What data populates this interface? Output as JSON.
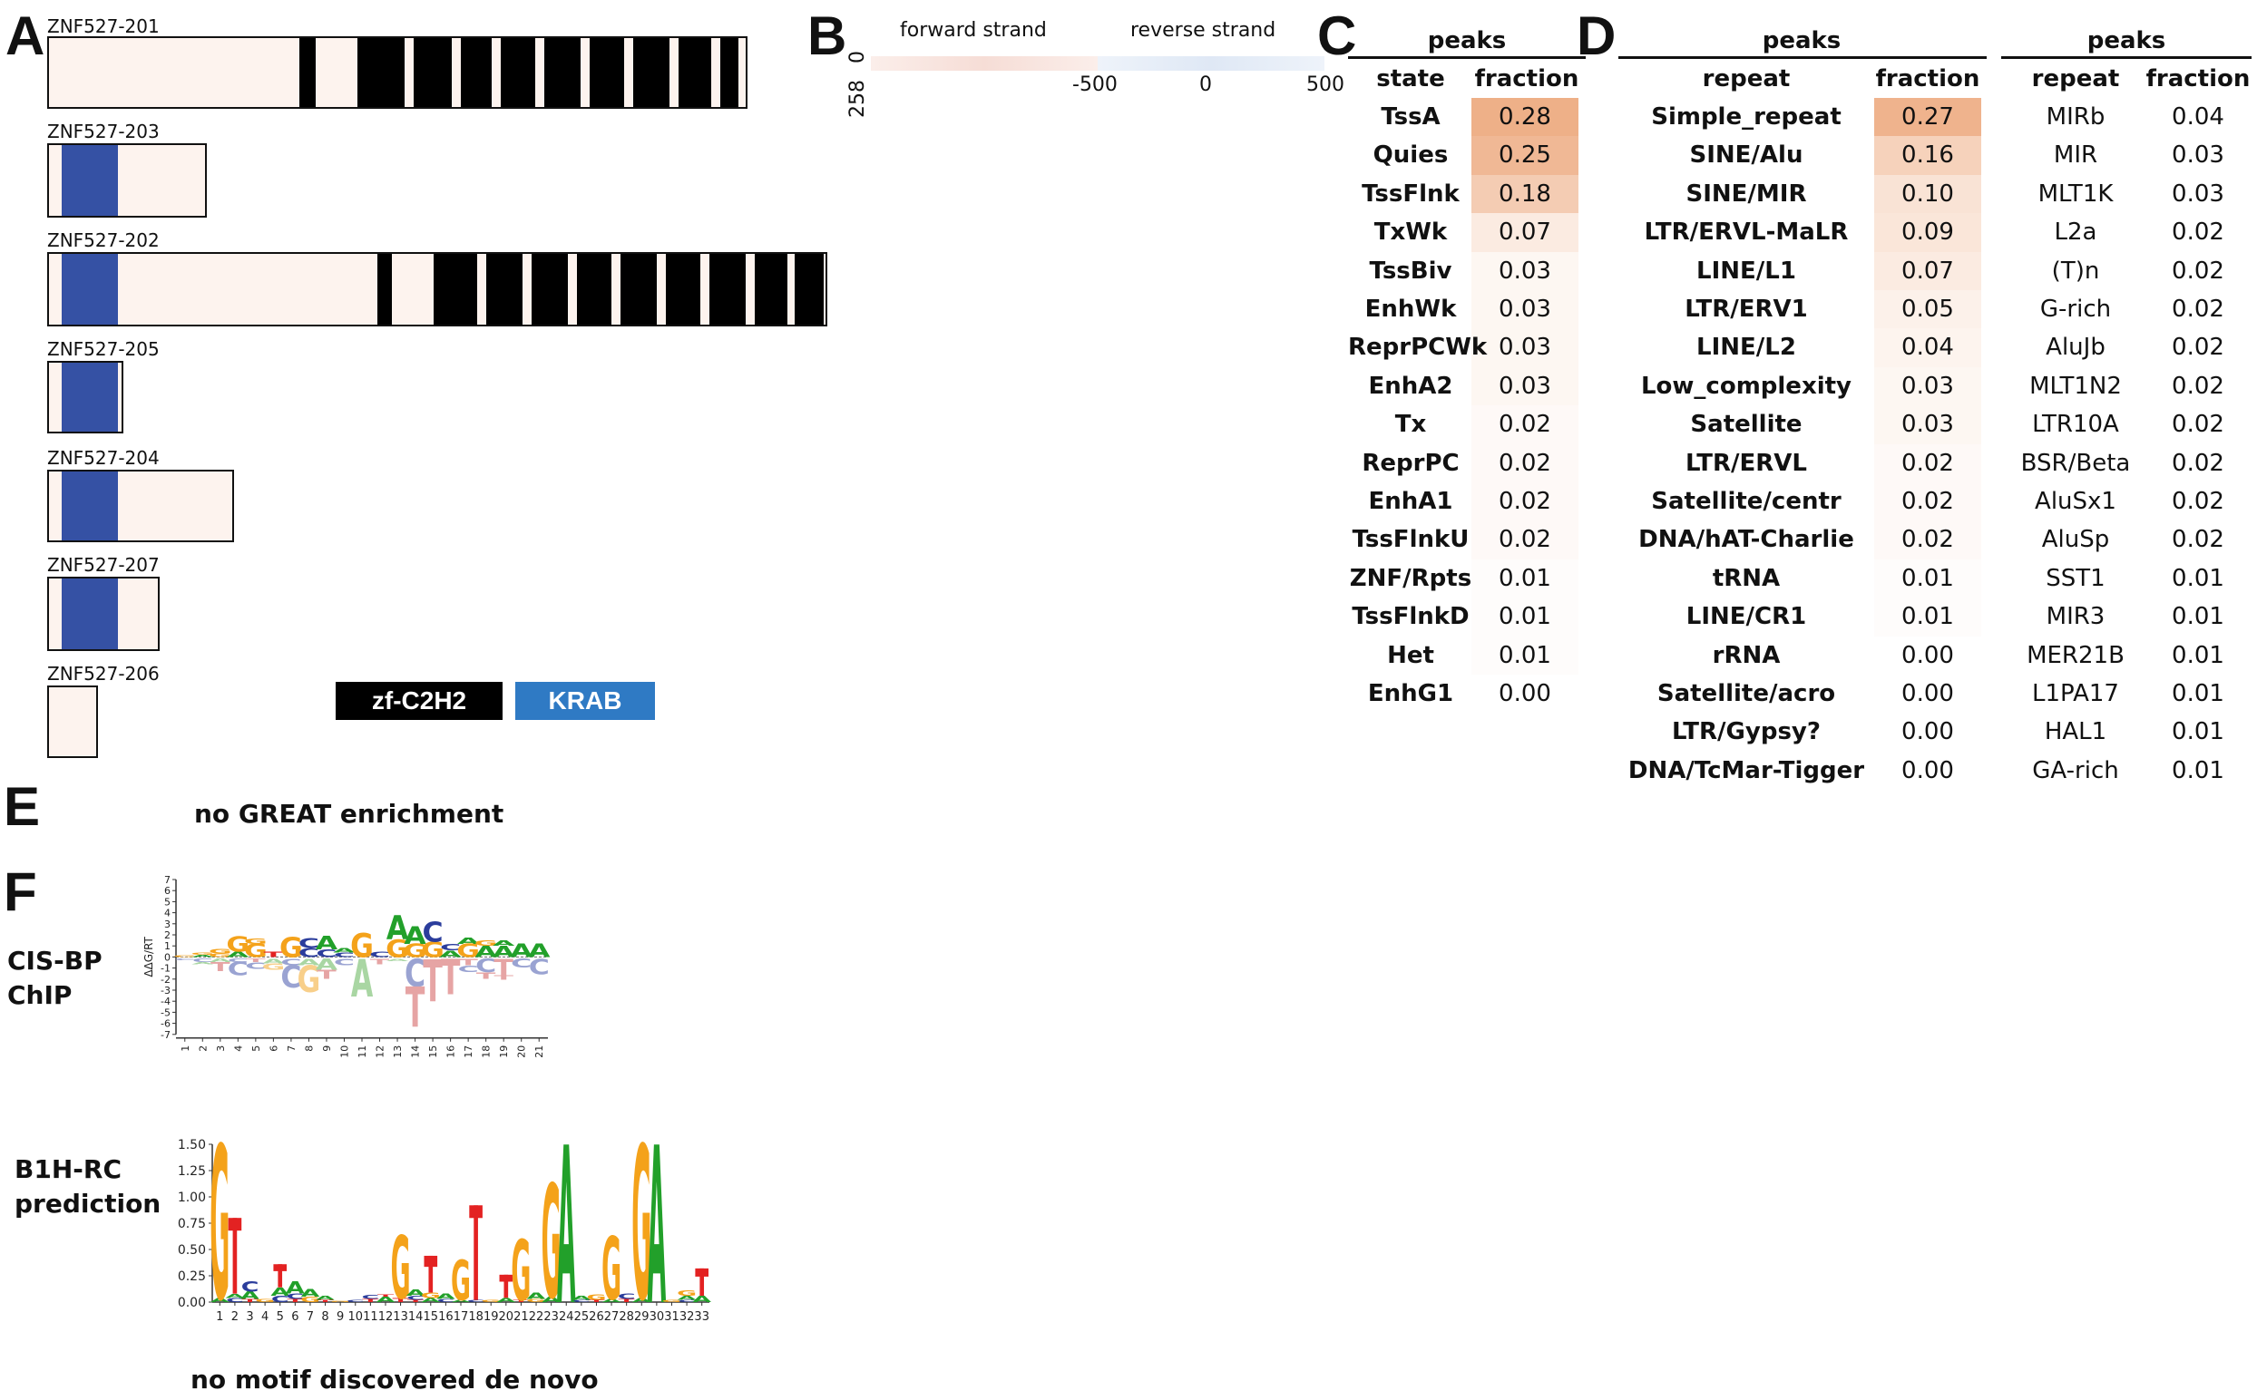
{
  "panels": {
    "A": "A",
    "B": "B",
    "C": "C",
    "D": "D",
    "E": "E",
    "F": "F"
  },
  "transcripts": [
    {
      "name": "ZNF527-201"
    },
    {
      "name": "ZNF527-203"
    },
    {
      "name": "ZNF527-202"
    },
    {
      "name": "ZNF527-205"
    },
    {
      "name": "ZNF527-204"
    },
    {
      "name": "ZNF527-207"
    },
    {
      "name": "ZNF527-206"
    }
  ],
  "legend": {
    "znf": "zf-C2H2",
    "krab": "KRAB",
    "colors": {
      "znf": "#000000",
      "krab": "#2f7ac4"
    }
  },
  "panelB": {
    "forward": "forward strand",
    "reverse": "reverse strand",
    "y_top": "0",
    "y_bottom": "258",
    "x_ticks": [
      "-500",
      "0",
      "500"
    ]
  },
  "panelC": {
    "group": "peaks",
    "col1": "state",
    "col2": "fraction",
    "rows": [
      {
        "label": "TssA",
        "value": "0.28"
      },
      {
        "label": "Quies",
        "value": "0.25"
      },
      {
        "label": "TssFlnk",
        "value": "0.18"
      },
      {
        "label": "TxWk",
        "value": "0.07"
      },
      {
        "label": "TssBiv",
        "value": "0.03"
      },
      {
        "label": "EnhWk",
        "value": "0.03"
      },
      {
        "label": "ReprPCWk",
        "value": "0.03"
      },
      {
        "label": "EnhA2",
        "value": "0.03"
      },
      {
        "label": "Tx",
        "value": "0.02"
      },
      {
        "label": "ReprPC",
        "value": "0.02"
      },
      {
        "label": "EnhA1",
        "value": "0.02"
      },
      {
        "label": "TssFlnkU",
        "value": "0.02"
      },
      {
        "label": "ZNF/Rpts",
        "value": "0.01"
      },
      {
        "label": "TssFlnkD",
        "value": "0.01"
      },
      {
        "label": "Het",
        "value": "0.01"
      },
      {
        "label": "EnhG1",
        "value": "0.00"
      }
    ]
  },
  "panelD1": {
    "group": "peaks",
    "col1": "repeat",
    "col2": "fraction",
    "rows": [
      {
        "label": "Simple_repeat",
        "value": "0.27"
      },
      {
        "label": "SINE/Alu",
        "value": "0.16"
      },
      {
        "label": "SINE/MIR",
        "value": "0.10"
      },
      {
        "label": "LTR/ERVL-MaLR",
        "value": "0.09"
      },
      {
        "label": "LINE/L1",
        "value": "0.07"
      },
      {
        "label": "LTR/ERV1",
        "value": "0.05"
      },
      {
        "label": "LINE/L2",
        "value": "0.04"
      },
      {
        "label": "Low_complexity",
        "value": "0.03"
      },
      {
        "label": "Satellite",
        "value": "0.03"
      },
      {
        "label": "LTR/ERVL",
        "value": "0.02"
      },
      {
        "label": "Satellite/centr",
        "value": "0.02"
      },
      {
        "label": "DNA/hAT-Charlie",
        "value": "0.02"
      },
      {
        "label": "tRNA",
        "value": "0.01"
      },
      {
        "label": "LINE/CR1",
        "value": "0.01"
      },
      {
        "label": "rRNA",
        "value": "0.00"
      },
      {
        "label": "Satellite/acro",
        "value": "0.00"
      },
      {
        "label": "LTR/Gypsy?",
        "value": "0.00"
      },
      {
        "label": "DNA/TcMar-Tigger",
        "value": "0.00"
      }
    ]
  },
  "panelD2": {
    "group": "peaks",
    "col1": "repeat",
    "col2": "fraction",
    "rows": [
      {
        "label": "MIRb",
        "value": "0.04"
      },
      {
        "label": "MIR",
        "value": "0.03"
      },
      {
        "label": "MLT1K",
        "value": "0.03"
      },
      {
        "label": "L2a",
        "value": "0.02"
      },
      {
        "label": "(T)n",
        "value": "0.02"
      },
      {
        "label": "G-rich",
        "value": "0.02"
      },
      {
        "label": "AluJb",
        "value": "0.02"
      },
      {
        "label": "MLT1N2",
        "value": "0.02"
      },
      {
        "label": "LTR10A",
        "value": "0.02"
      },
      {
        "label": "BSR/Beta",
        "value": "0.02"
      },
      {
        "label": "AluSx1",
        "value": "0.02"
      },
      {
        "label": "AluSp",
        "value": "0.02"
      },
      {
        "label": "SST1",
        "value": "0.01"
      },
      {
        "label": "MIR3",
        "value": "0.01"
      },
      {
        "label": "MER21B",
        "value": "0.01"
      },
      {
        "label": "L1PA17",
        "value": "0.01"
      },
      {
        "label": "HAL1",
        "value": "0.01"
      },
      {
        "label": "GA-rich",
        "value": "0.01"
      }
    ]
  },
  "panelE": {
    "text": "no GREAT enrichment"
  },
  "panelF": {
    "cisbp_label": "CIS-BP\nChIP",
    "cisbp_line1": "CIS-BP",
    "cisbp_line2": "ChIP",
    "cisbp_ylabel": "ΔΔG/RT",
    "cisbp_yticks": [
      "7",
      "6",
      "5",
      "4",
      "3",
      "2",
      "1",
      "0",
      "-1",
      "-2",
      "-3",
      "-4",
      "-5",
      "-6",
      "-7"
    ],
    "cisbp_xticks": [
      "1",
      "2",
      "3",
      "4",
      "5",
      "6",
      "7",
      "8",
      "9",
      "10",
      "11",
      "12",
      "13",
      "14",
      "15",
      "16",
      "17",
      "18",
      "19",
      "20",
      "21"
    ],
    "b1h_line1": "B1H-RC",
    "b1h_line2": "prediction",
    "b1h_yticks": [
      "1.50",
      "1.25",
      "1.00",
      "0.75",
      "0.50",
      "0.25",
      "0.00"
    ],
    "b1h_xticks": [
      "1",
      "2",
      "3",
      "4",
      "5",
      "6",
      "7",
      "8",
      "9",
      "10",
      "11",
      "12",
      "13",
      "14",
      "15",
      "16",
      "17",
      "18",
      "19",
      "20",
      "21",
      "22",
      "23",
      "24",
      "25",
      "26",
      "27",
      "28",
      "29",
      "30",
      "31",
      "32",
      "33"
    ],
    "denovo_text": "no motif discovered de novo"
  },
  "colors": {
    "A": "#22a02a",
    "C": "#2b3d9c",
    "G": "#f4a21a",
    "T": "#e32222",
    "heat_max": "#eda97e",
    "tx_fill": "#fdf3ee"
  }
}
